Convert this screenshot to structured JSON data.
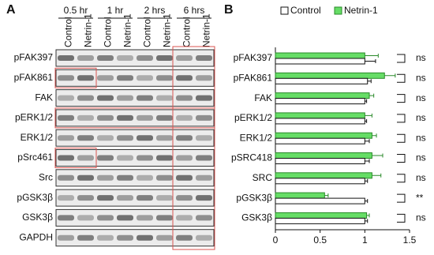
{
  "panel_a": {
    "label": "A",
    "time_points": [
      "0.5 hr",
      "1 hr",
      "2 hrs",
      "6 hrs"
    ],
    "conditions": [
      "Control",
      "Netrin-1"
    ],
    "proteins": [
      "pFAK397",
      "pFAK861",
      "FAK",
      "pERK1/2",
      "ERK1/2",
      "pSrc461",
      "Src",
      "pGSK3β",
      "GSK3β",
      "GAPDH"
    ]
  },
  "chart_data": {
    "type": "hbar",
    "panel_label": "B",
    "categories": [
      "pFAK397",
      "pFAK861",
      "FAK",
      "pERK1/2",
      "ERK1/2",
      "pSRC418",
      "SRC",
      "pGSK3β",
      "GSK3β"
    ],
    "series": [
      {
        "name": "Control",
        "color": "#ffffff",
        "values": [
          1.0,
          1.03,
          1.0,
          1.0,
          1.0,
          1.0,
          1.0,
          1.0,
          1.0
        ],
        "errors": [
          0.12,
          0.04,
          0.02,
          0.02,
          0.05,
          0.05,
          0.03,
          0.03,
          0.03
        ]
      },
      {
        "name": "Netrin-1",
        "color": "#66dd66",
        "values": [
          1.0,
          1.22,
          1.05,
          1.0,
          1.08,
          1.08,
          1.08,
          0.55,
          1.02
        ],
        "errors": [
          0.15,
          0.12,
          0.05,
          0.08,
          0.05,
          0.12,
          0.1,
          0.04,
          0.03
        ]
      }
    ],
    "significance": [
      "ns",
      "ns",
      "ns",
      "ns",
      "ns",
      "ns",
      "ns",
      "**",
      "ns"
    ],
    "xlim": [
      0,
      1.5
    ],
    "xticks": [
      0,
      0.5,
      1,
      1.5
    ]
  }
}
